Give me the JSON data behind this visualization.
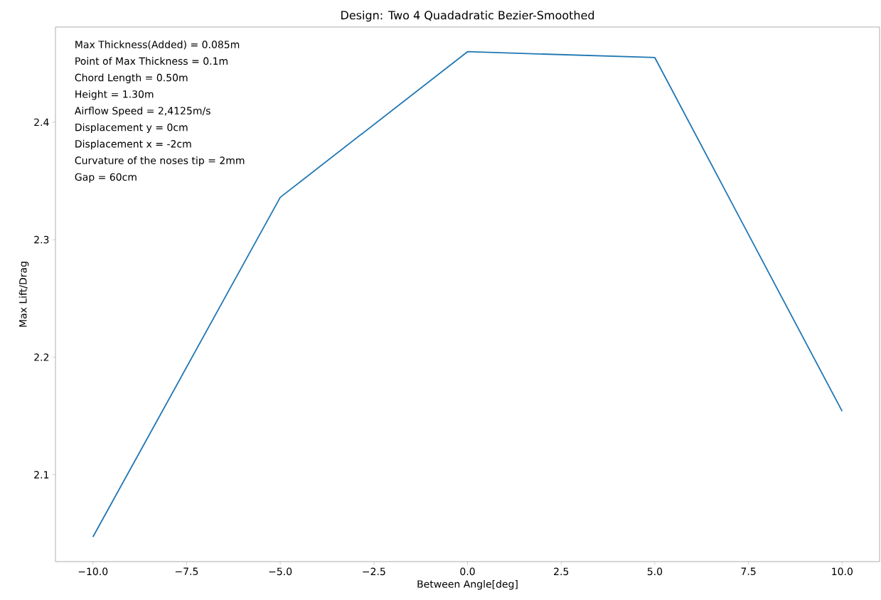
{
  "chart_data": {
    "type": "line",
    "title": "Design: Two 4 Quadadratic Bezier-Smoothed",
    "xlabel": "Between Angle[deg]",
    "ylabel": "Max Lift/Drag",
    "x": [
      -10,
      -5,
      0,
      5,
      10
    ],
    "series": [
      {
        "color": "#1f77b4",
        "values": [
          2.047,
          2.336,
          2.46,
          2.455,
          2.154
        ]
      }
    ],
    "xlim": [
      -11,
      11
    ],
    "ylim": [
      2.026,
      2.481
    ],
    "xticks": [
      {
        "value": -10,
        "label": "−10.0"
      },
      {
        "value": -7.5,
        "label": "−7.5"
      },
      {
        "value": -5,
        "label": "−5.0"
      },
      {
        "value": -2.5,
        "label": "−2.5"
      },
      {
        "value": 0,
        "label": "0.0"
      },
      {
        "value": 2.5,
        "label": "2.5"
      },
      {
        "value": 5,
        "label": "5.0"
      },
      {
        "value": 7.5,
        "label": "7.5"
      },
      {
        "value": 10,
        "label": "10.0"
      }
    ],
    "yticks": [
      2.1,
      2.2,
      2.3,
      2.4
    ],
    "annotations": [
      "Max Thickness(Added) = 0.085m",
      "Point of Max Thickness = 0.1m",
      "Chord Length = 0.50m",
      "Height = 1.30m",
      "Airflow Speed = 2,4125m/s",
      "Displacement y = 0cm",
      "Displacement x = -2cm",
      "Curvature of the noses tip = 2mm",
      "Gap = 60cm"
    ]
  }
}
